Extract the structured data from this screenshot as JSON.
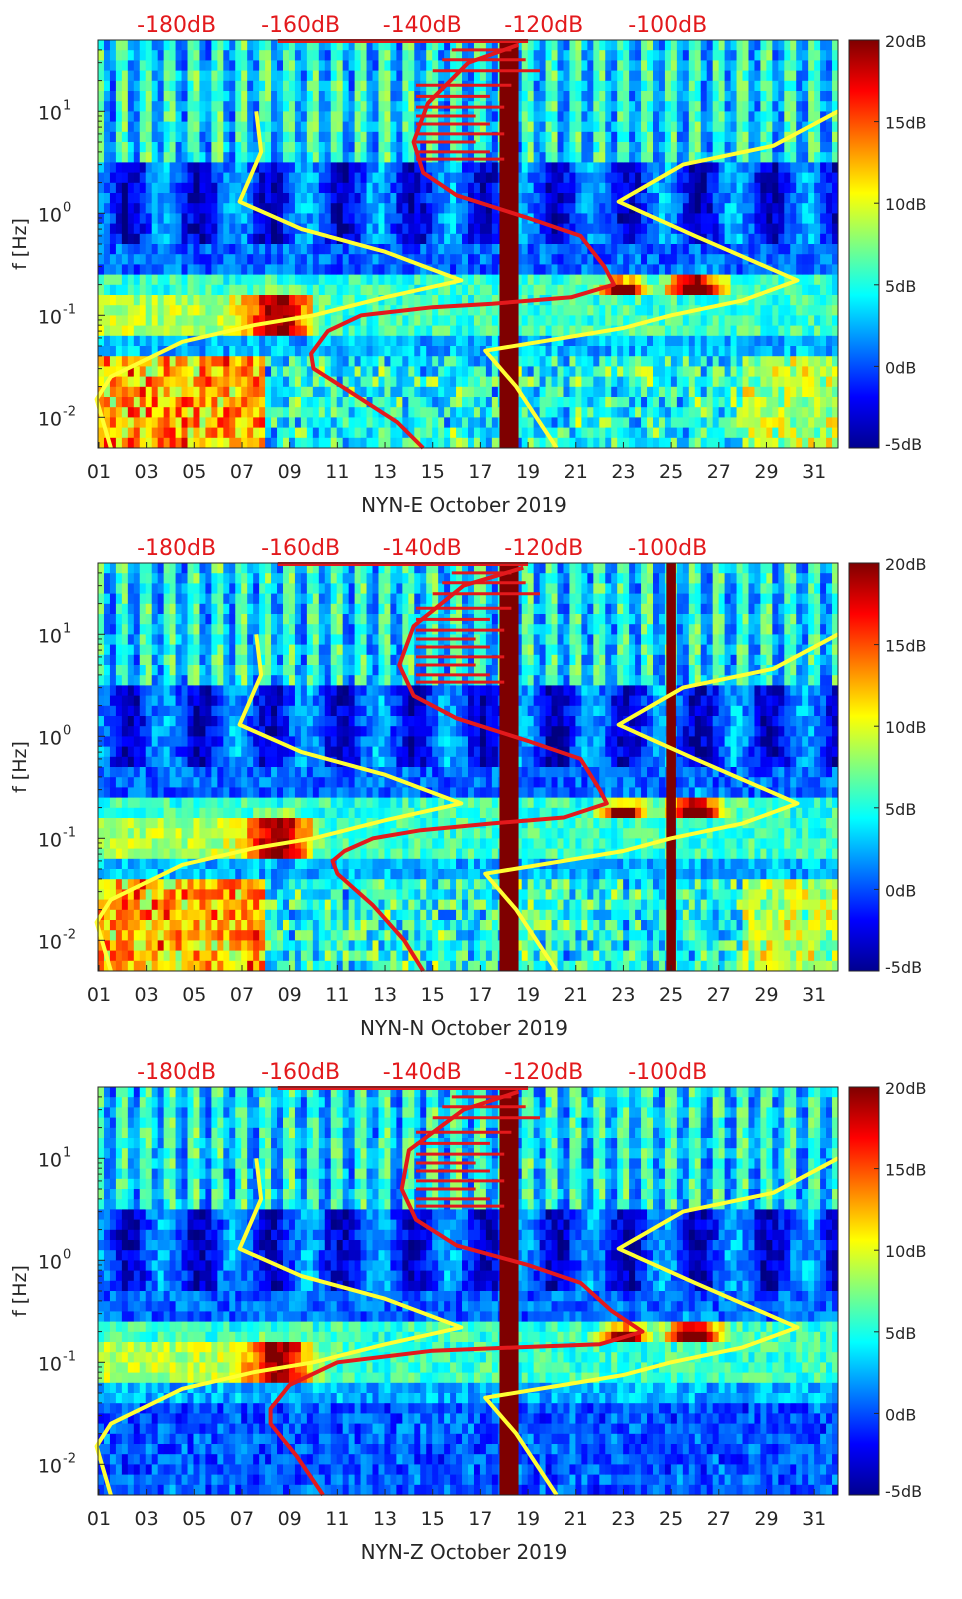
{
  "chart_data": [
    {
      "type": "heatmap",
      "title": "NYN-E October 2019",
      "xlabel": "NYN-E October 2019",
      "ylabel": "f [Hz]",
      "x_ticks": [
        "01",
        "03",
        "05",
        "07",
        "09",
        "11",
        "13",
        "15",
        "17",
        "19",
        "21",
        "23",
        "25",
        "27",
        "29",
        "31"
      ],
      "y_ticks": [
        "10^-2",
        "10^-1",
        "10^0",
        "10^1"
      ],
      "xlim": [
        1,
        32
      ],
      "ylim": [
        0.005,
        50
      ],
      "y_scale": "log",
      "db_scale_labels": [
        "-180dB",
        "-160dB",
        "-140dB",
        "-120dB",
        "-100dB"
      ],
      "colorbar": {
        "labels": [
          "20dB",
          "15dB",
          "10dB",
          "5dB",
          "0dB",
          "-5dB"
        ],
        "range": [
          -5,
          20
        ]
      },
      "gap_bands": [
        {
          "from_day": 17.8,
          "to_day": 18.6
        }
      ],
      "series": [
        {
          "name": "Noise model lower bound",
          "color": "#ffff33",
          "points": [
            [
              7.6,
              10
            ],
            [
              7.8,
              4
            ],
            [
              6.9,
              1.3
            ],
            [
              9.5,
              0.7
            ],
            [
              13,
              0.42
            ],
            [
              16.2,
              0.22
            ],
            [
              13,
              0.15
            ],
            [
              10,
              0.1
            ],
            [
              7.5,
              0.08
            ],
            [
              4.5,
              0.055
            ],
            [
              1.5,
              0.025
            ],
            [
              0.9,
              0.015
            ],
            [
              1.5,
              0.005
            ]
          ]
        },
        {
          "name": "Noise model upper bound",
          "color": "#ffff33",
          "points": [
            [
              32,
              10
            ],
            [
              29.3,
              4.6
            ],
            [
              25.5,
              3
            ],
            [
              22.8,
              1.3
            ],
            [
              26,
              0.6
            ],
            [
              30.3,
              0.22
            ],
            [
              28,
              0.14
            ],
            [
              25,
              0.1
            ],
            [
              23,
              0.075
            ],
            [
              20.5,
              0.06
            ],
            [
              17.2,
              0.045
            ],
            [
              18.5,
              0.02
            ],
            [
              20.2,
              0.005
            ]
          ]
        },
        {
          "name": "Station noise level",
          "color": "#e3191c",
          "points": [
            [
              18.6,
              45
            ],
            [
              16.5,
              30
            ],
            [
              14.8,
              12
            ],
            [
              14.2,
              5
            ],
            [
              14.6,
              2.5
            ],
            [
              16,
              1.5
            ],
            [
              19,
              0.9
            ],
            [
              21.2,
              0.6
            ],
            [
              22.2,
              0.3
            ],
            [
              22.6,
              0.2
            ],
            [
              20.8,
              0.15
            ],
            [
              17.5,
              0.13
            ],
            [
              15,
              0.12
            ],
            [
              12,
              0.1
            ],
            [
              10.6,
              0.07
            ],
            [
              9.9,
              0.042
            ],
            [
              10,
              0.03
            ],
            [
              11.5,
              0.018
            ],
            [
              13.5,
              0.009
            ],
            [
              14.6,
              0.005
            ]
          ]
        }
      ]
    },
    {
      "type": "heatmap",
      "title": "NYN-N October 2019",
      "xlabel": "NYN-N October 2019",
      "ylabel": "f [Hz]",
      "x_ticks": [
        "01",
        "03",
        "05",
        "07",
        "09",
        "11",
        "13",
        "15",
        "17",
        "19",
        "21",
        "23",
        "25",
        "27",
        "29",
        "31"
      ],
      "y_ticks": [
        "10^-2",
        "10^-1",
        "10^0",
        "10^1"
      ],
      "xlim": [
        1,
        32
      ],
      "ylim": [
        0.005,
        50
      ],
      "y_scale": "log",
      "db_scale_labels": [
        "-180dB",
        "-160dB",
        "-140dB",
        "-120dB",
        "-100dB"
      ],
      "colorbar": {
        "labels": [
          "20dB",
          "15dB",
          "10dB",
          "5dB",
          "0dB",
          "-5dB"
        ],
        "range": [
          -5,
          20
        ]
      },
      "gap_bands": [
        {
          "from_day": 17.8,
          "to_day": 18.6
        },
        {
          "from_day": 24.8,
          "to_day": 25.2
        }
      ],
      "series": [
        {
          "name": "Noise model lower bound",
          "color": "#ffff33",
          "points": [
            [
              7.6,
              10
            ],
            [
              7.8,
              4
            ],
            [
              6.9,
              1.3
            ],
            [
              9.5,
              0.7
            ],
            [
              13,
              0.42
            ],
            [
              16.2,
              0.22
            ],
            [
              13,
              0.15
            ],
            [
              10,
              0.1
            ],
            [
              7.5,
              0.08
            ],
            [
              4.5,
              0.055
            ],
            [
              1.5,
              0.025
            ],
            [
              0.9,
              0.015
            ],
            [
              1.5,
              0.005
            ]
          ]
        },
        {
          "name": "Noise model upper bound",
          "color": "#ffff33",
          "points": [
            [
              32,
              10
            ],
            [
              29.3,
              4.6
            ],
            [
              25.5,
              3
            ],
            [
              22.8,
              1.3
            ],
            [
              26,
              0.6
            ],
            [
              30.3,
              0.22
            ],
            [
              28,
              0.14
            ],
            [
              25,
              0.1
            ],
            [
              23,
              0.075
            ],
            [
              20.5,
              0.06
            ],
            [
              17.2,
              0.045
            ],
            [
              18.5,
              0.02
            ],
            [
              20.2,
              0.005
            ]
          ]
        },
        {
          "name": "Station noise level",
          "color": "#e3191c",
          "points": [
            [
              18.8,
              45
            ],
            [
              16.3,
              30
            ],
            [
              14.2,
              12
            ],
            [
              13.6,
              5
            ],
            [
              14.2,
              2.5
            ],
            [
              16,
              1.5
            ],
            [
              19,
              0.9
            ],
            [
              21.2,
              0.6
            ],
            [
              22,
              0.3
            ],
            [
              22.3,
              0.22
            ],
            [
              20.5,
              0.16
            ],
            [
              17.5,
              0.14
            ],
            [
              14.5,
              0.12
            ],
            [
              12.5,
              0.1
            ],
            [
              11.3,
              0.075
            ],
            [
              10.8,
              0.06
            ],
            [
              11,
              0.045
            ],
            [
              12.5,
              0.022
            ],
            [
              13.8,
              0.01
            ],
            [
              14.6,
              0.005
            ]
          ]
        }
      ]
    },
    {
      "type": "heatmap",
      "title": "NYN-Z October 2019",
      "xlabel": "NYN-Z October 2019",
      "ylabel": "f [Hz]",
      "x_ticks": [
        "01",
        "03",
        "05",
        "07",
        "09",
        "11",
        "13",
        "15",
        "17",
        "19",
        "21",
        "23",
        "25",
        "27",
        "29",
        "31"
      ],
      "y_ticks": [
        "10^-2",
        "10^-1",
        "10^0",
        "10^1"
      ],
      "xlim": [
        1,
        32
      ],
      "ylim": [
        0.005,
        50
      ],
      "y_scale": "log",
      "db_scale_labels": [
        "-180dB",
        "-160dB",
        "-140dB",
        "-120dB",
        "-100dB"
      ],
      "colorbar": {
        "labels": [
          "20dB",
          "15dB",
          "10dB",
          "5dB",
          "0dB",
          "-5dB"
        ],
        "range": [
          -5,
          20
        ]
      },
      "gap_bands": [
        {
          "from_day": 17.8,
          "to_day": 18.6
        }
      ],
      "series": [
        {
          "name": "Noise model lower bound",
          "color": "#ffff33",
          "points": [
            [
              7.6,
              10
            ],
            [
              7.8,
              4
            ],
            [
              6.9,
              1.3
            ],
            [
              9.5,
              0.7
            ],
            [
              13,
              0.42
            ],
            [
              16.2,
              0.22
            ],
            [
              13,
              0.15
            ],
            [
              10,
              0.1
            ],
            [
              7.5,
              0.08
            ],
            [
              4.5,
              0.055
            ],
            [
              1.5,
              0.025
            ],
            [
              0.9,
              0.015
            ],
            [
              1.5,
              0.005
            ]
          ]
        },
        {
          "name": "Noise model upper bound",
          "color": "#ffff33",
          "points": [
            [
              32,
              10
            ],
            [
              29.3,
              4.6
            ],
            [
              25.5,
              3
            ],
            [
              22.8,
              1.3
            ],
            [
              26,
              0.6
            ],
            [
              30.3,
              0.22
            ],
            [
              28,
              0.14
            ],
            [
              25,
              0.1
            ],
            [
              23,
              0.075
            ],
            [
              20.5,
              0.06
            ],
            [
              17.2,
              0.045
            ],
            [
              18.5,
              0.02
            ],
            [
              20.2,
              0.005
            ]
          ]
        },
        {
          "name": "Station noise level",
          "color": "#e3191c",
          "points": [
            [
              18.6,
              45
            ],
            [
              16.3,
              30
            ],
            [
              14,
              12
            ],
            [
              13.7,
              5
            ],
            [
              14.3,
              2.5
            ],
            [
              16,
              1.4
            ],
            [
              19,
              0.9
            ],
            [
              21.2,
              0.6
            ],
            [
              22.5,
              0.32
            ],
            [
              23.8,
              0.2
            ],
            [
              22,
              0.15
            ],
            [
              18.5,
              0.14
            ],
            [
              15,
              0.13
            ],
            [
              11,
              0.1
            ],
            [
              9,
              0.06
            ],
            [
              8.2,
              0.035
            ],
            [
              8.2,
              0.025
            ],
            [
              9.3,
              0.012
            ],
            [
              10.4,
              0.005
            ]
          ]
        }
      ]
    }
  ],
  "colors": {
    "heat_low": "#00008f",
    "heat_mid": "#1c8cff",
    "heat_high": "#7f0000",
    "model_line": "#ffff33",
    "noise_line": "#e3191c",
    "db_label": "#e3191c"
  }
}
